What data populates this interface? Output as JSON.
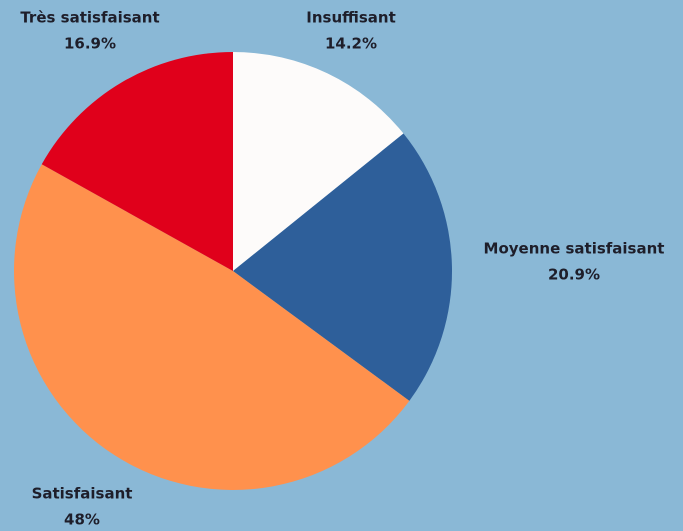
{
  "chart_data": {
    "type": "pie",
    "categories": [
      "Insuffisant",
      "Moyenne satisfaisant",
      "Satisfaisant",
      "Très satisfaisant"
    ],
    "values": [
      14.2,
      20.9,
      48,
      16.9
    ],
    "value_labels": [
      "14.2%",
      "20.9%",
      "48%",
      "16.9%"
    ],
    "colors": [
      "#fdfbfa",
      "#2e5f9a",
      "#ff914d",
      "#e0001b"
    ]
  }
}
